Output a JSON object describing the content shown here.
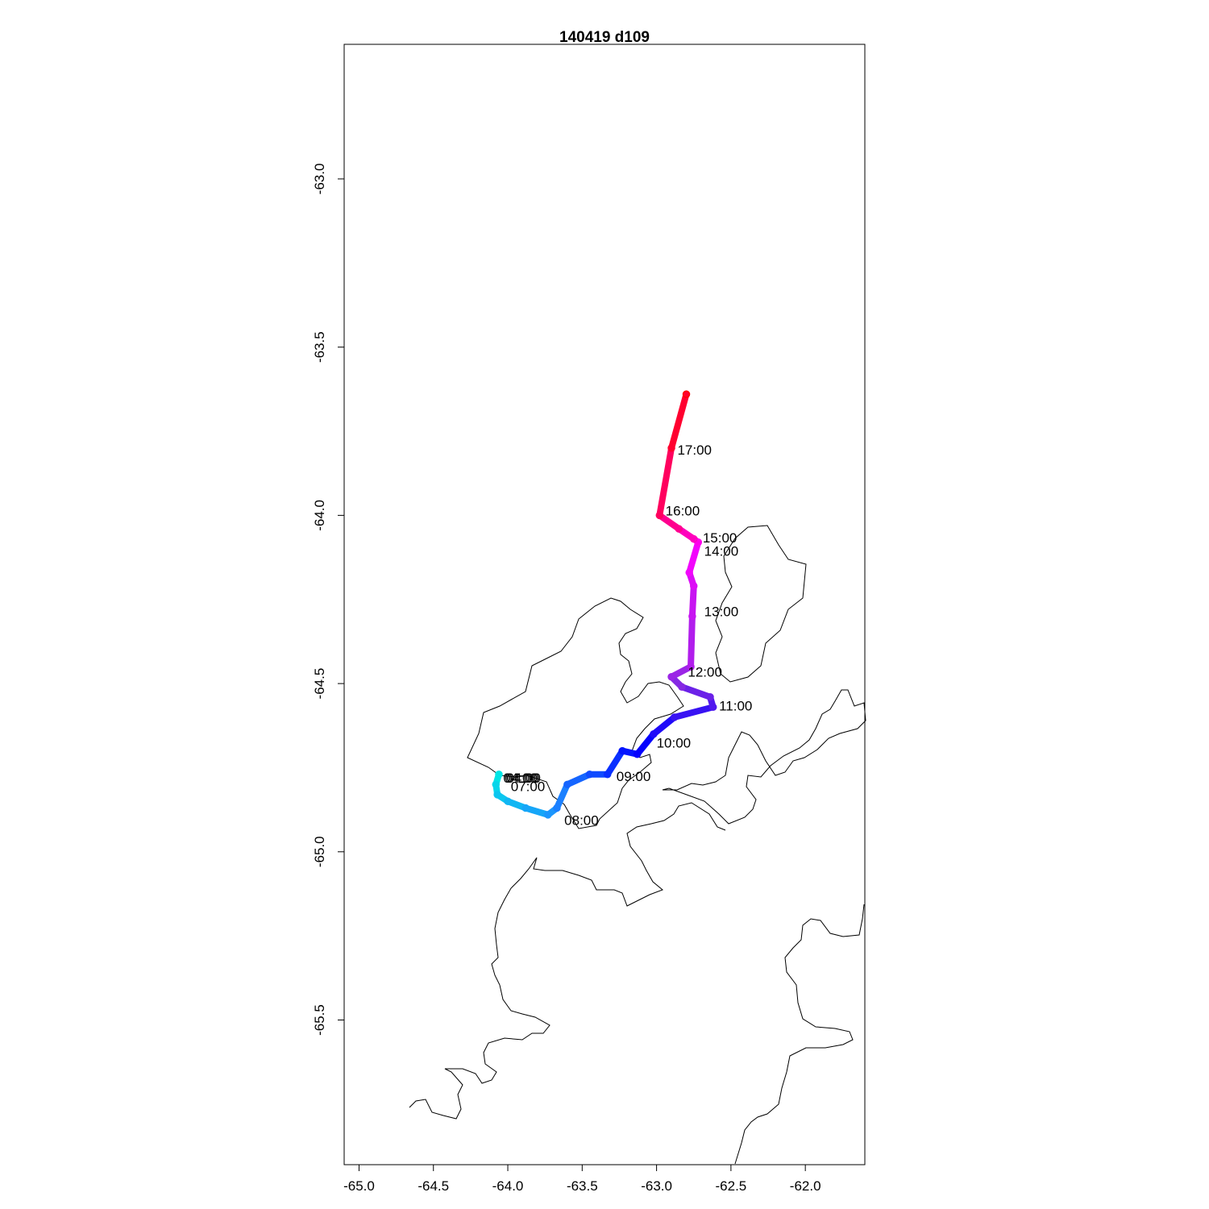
{
  "chart_data": {
    "type": "line",
    "title": "140419   d109",
    "xlabel": "",
    "ylabel": "",
    "xlim": [
      -65.1,
      -61.6
    ],
    "ylim": [
      -65.93,
      -62.6
    ],
    "x_ticks": [
      "-65.0",
      "-64.5",
      "-64.0",
      "-63.5",
      "-63.0",
      "-62.5",
      "-62.0"
    ],
    "y_ticks": [
      "-63.0",
      "-63.5",
      "-64.0",
      "-64.5",
      "-65.0",
      "-65.5"
    ],
    "track_colors_by_time": [
      "#00e5e5",
      "#1e90ff",
      "#0000ff",
      "#8a2be2",
      "#ff00ff",
      "#ff0000"
    ],
    "track": [
      {
        "x": -64.06,
        "y": -64.77
      },
      {
        "x": -64.08,
        "y": -64.8
      },
      {
        "x": -64.07,
        "y": -64.83
      },
      {
        "x": -64.0,
        "y": -64.85
      },
      {
        "x": -63.88,
        "y": -64.87
      },
      {
        "x": -63.73,
        "y": -64.89
      },
      {
        "x": -63.67,
        "y": -64.87
      },
      {
        "x": -63.6,
        "y": -64.8
      },
      {
        "x": -63.45,
        "y": -64.77
      },
      {
        "x": -63.33,
        "y": -64.77
      },
      {
        "x": -63.23,
        "y": -64.7
      },
      {
        "x": -63.13,
        "y": -64.71
      },
      {
        "x": -63.02,
        "y": -64.65
      },
      {
        "x": -62.88,
        "y": -64.6
      },
      {
        "x": -62.62,
        "y": -64.57
      },
      {
        "x": -62.64,
        "y": -64.54
      },
      {
        "x": -62.83,
        "y": -64.51
      },
      {
        "x": -62.9,
        "y": -64.48
      },
      {
        "x": -62.77,
        "y": -64.45
      },
      {
        "x": -62.76,
        "y": -64.3
      },
      {
        "x": -62.75,
        "y": -64.21
      },
      {
        "x": -62.78,
        "y": -64.17
      },
      {
        "x": -62.72,
        "y": -64.08
      },
      {
        "x": -62.75,
        "y": -64.07
      },
      {
        "x": -62.85,
        "y": -64.04
      },
      {
        "x": -62.98,
        "y": -64.0
      },
      {
        "x": -62.9,
        "y": -63.8
      },
      {
        "x": -62.8,
        "y": -63.64
      }
    ],
    "time_labels": [
      {
        "text": "07:00",
        "x": -63.98,
        "y": -64.82
      },
      {
        "text": "08:00",
        "x": -63.62,
        "y": -64.92
      },
      {
        "text": "09:00",
        "x": -63.27,
        "y": -64.79
      },
      {
        "text": "10:00",
        "x": -63.0,
        "y": -64.69
      },
      {
        "text": "11:00",
        "x": -62.58,
        "y": -64.58
      },
      {
        "text": "12:00",
        "x": -62.79,
        "y": -64.48
      },
      {
        "text": "13:00",
        "x": -62.68,
        "y": -64.3
      },
      {
        "text": "14:00",
        "x": -62.68,
        "y": -64.12
      },
      {
        "text": "15:00",
        "x": -62.69,
        "y": -64.08
      },
      {
        "text": "16:00",
        "x": -62.94,
        "y": -64.0
      },
      {
        "text": "17:00",
        "x": -62.86,
        "y": -63.82
      }
    ],
    "overlapping_labels_start": {
      "text": "04:00",
      "x": -64.02,
      "y": -64.78
    }
  }
}
